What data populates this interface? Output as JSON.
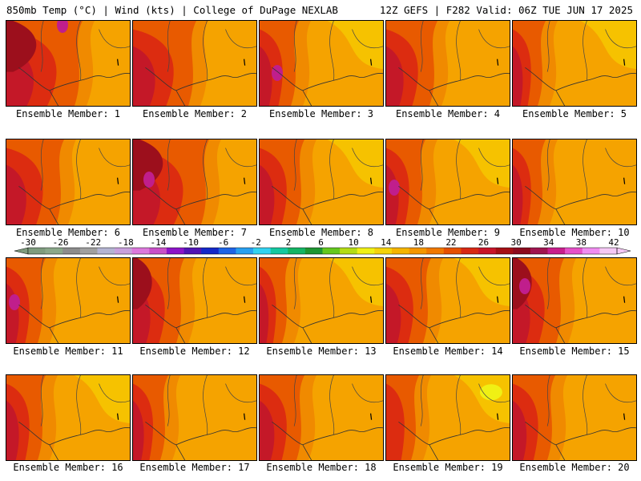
{
  "header": {
    "left": "850mb Temp (°C) | Wind (kts) | College of DuPage NEXLAB",
    "right": "12Z GEFS | F282 Valid: 06Z TUE JUN 17 2025"
  },
  "members": [
    {
      "label": "Ensemble Member: 1"
    },
    {
      "label": "Ensemble Member: 2"
    },
    {
      "label": "Ensemble Member: 3"
    },
    {
      "label": "Ensemble Member: 4"
    },
    {
      "label": "Ensemble Member: 5"
    },
    {
      "label": "Ensemble Member: 6"
    },
    {
      "label": "Ensemble Member: 7"
    },
    {
      "label": "Ensemble Member: 8"
    },
    {
      "label": "Ensemble Member: 9"
    },
    {
      "label": "Ensemble Member: 10"
    },
    {
      "label": "Ensemble Member: 11"
    },
    {
      "label": "Ensemble Member: 12"
    },
    {
      "label": "Ensemble Member: 13"
    },
    {
      "label": "Ensemble Member: 14"
    },
    {
      "label": "Ensemble Member: 15"
    },
    {
      "label": "Ensemble Member: 16"
    },
    {
      "label": "Ensemble Member: 17"
    },
    {
      "label": "Ensemble Member: 18"
    },
    {
      "label": "Ensemble Member: 19"
    },
    {
      "label": "Ensemble Member: 20"
    }
  ],
  "colorbar": {
    "labels": [
      "-30",
      "-26",
      "-22",
      "-18",
      "-14",
      "-10",
      "-6",
      "-2",
      "2",
      "6",
      "10",
      "14",
      "18",
      "22",
      "26",
      "30",
      "34",
      "38",
      "42"
    ],
    "colors": [
      "#7e9c7e",
      "#8aa88a",
      "#8c8c8c",
      "#a0a0a0",
      "#b4b4d2",
      "#c8a0dc",
      "#dc78dc",
      "#c850c8",
      "#8c14c8",
      "#5014b4",
      "#1428c8",
      "#1e64e6",
      "#28a0f0",
      "#32d2f0",
      "#14c8a0",
      "#14b464",
      "#1e9632",
      "#64c81e",
      "#b4dc14",
      "#f0f014",
      "#f5d20a",
      "#f5b400",
      "#f59600",
      "#f07800",
      "#e65000",
      "#d72814",
      "#c81428",
      "#a50f14",
      "#8c0a1e",
      "#a01450",
      "#c81e8c",
      "#e650c8",
      "#f08cf0",
      "#f5c8f5"
    ]
  }
}
